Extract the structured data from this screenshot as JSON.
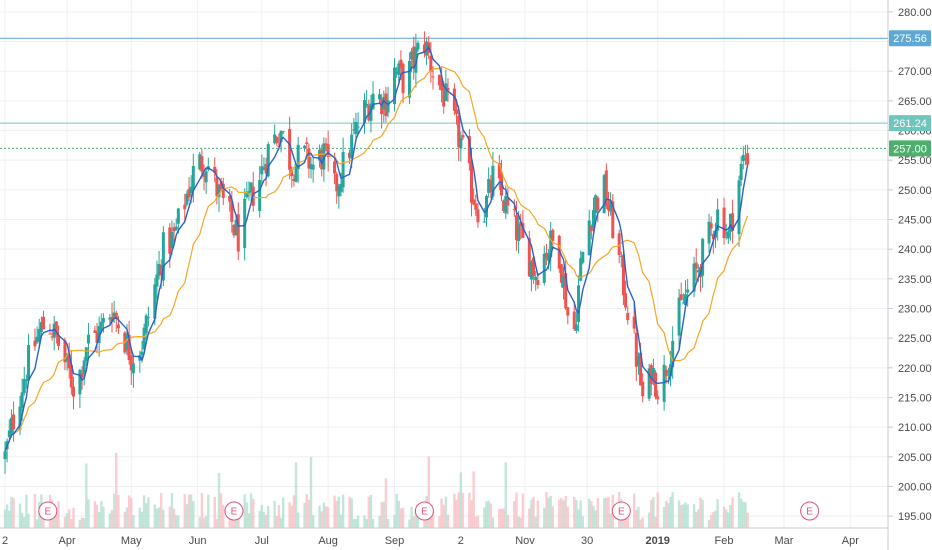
{
  "chart_data": {
    "type": "candlestick",
    "y_axis": {
      "range": [
        193,
        282
      ],
      "ticks": [
        "195.00",
        "200.00",
        "205.00",
        "210.00",
        "215.00",
        "220.00",
        "225.00",
        "230.00",
        "235.00",
        "240.00",
        "245.00",
        "250.00",
        "255.00",
        "260.00",
        "265.00",
        "270.00",
        "275.00",
        "280.00"
      ]
    },
    "x_axis": {
      "ticks": [
        {
          "label": "2",
          "day": 0
        },
        {
          "label": "Apr",
          "day": 29
        },
        {
          "label": "May",
          "day": 59
        },
        {
          "label": "Jun",
          "day": 90
        },
        {
          "label": "Jul",
          "day": 120
        },
        {
          "label": "Aug",
          "day": 151
        },
        {
          "label": "Sep",
          "day": 182
        },
        {
          "label": "2",
          "day": 213
        },
        {
          "label": "Nov",
          "day": 243
        },
        {
          "label": "30",
          "day": 272
        },
        {
          "label": "2019",
          "day": 305,
          "bold": true
        },
        {
          "label": "Feb",
          "day": 336
        },
        {
          "label": "Mar",
          "day": 364
        },
        {
          "label": "Apr",
          "day": 395
        }
      ]
    },
    "horizontal_lines": [
      {
        "value": 275.56,
        "label": "275.56",
        "color": "#5fa8d3"
      },
      {
        "value": 261.24,
        "label": "261.24",
        "color": "#6fc6bd"
      },
      {
        "value": 257.0,
        "label": "257.00",
        "color": "#4caf6e",
        "dotted": true
      }
    ],
    "earnings_markers": {
      "label": "E",
      "days": [
        20,
        107,
        196,
        288,
        376
      ]
    },
    "keypoints": [
      [
        0,
        205
      ],
      [
        5,
        213
      ],
      [
        10,
        220
      ],
      [
        16,
        226
      ],
      [
        20,
        228
      ],
      [
        25,
        224
      ],
      [
        29,
        220
      ],
      [
        33,
        216
      ],
      [
        38,
        224
      ],
      [
        44,
        226
      ],
      [
        50,
        230
      ],
      [
        55,
        226
      ],
      [
        59,
        222
      ],
      [
        64,
        224
      ],
      [
        69,
        232
      ],
      [
        74,
        240
      ],
      [
        79,
        242
      ],
      [
        84,
        248
      ],
      [
        89,
        254
      ],
      [
        94,
        255
      ],
      [
        99,
        250
      ],
      [
        104,
        246
      ],
      [
        109,
        242
      ],
      [
        114,
        248
      ],
      [
        119,
        252
      ],
      [
        124,
        258
      ],
      [
        129,
        260
      ],
      [
        134,
        254
      ],
      [
        139,
        256
      ],
      [
        144,
        254
      ],
      [
        149,
        256
      ],
      [
        154,
        250
      ],
      [
        160,
        256
      ],
      [
        166,
        262
      ],
      [
        172,
        266
      ],
      [
        178,
        265
      ],
      [
        182,
        270
      ],
      [
        187,
        268
      ],
      [
        191,
        272
      ],
      [
        196,
        275
      ],
      [
        200,
        270
      ],
      [
        205,
        266
      ],
      [
        209,
        262
      ],
      [
        213,
        258
      ],
      [
        218,
        250
      ],
      [
        223,
        245
      ],
      [
        228,
        252
      ],
      [
        233,
        248
      ],
      [
        238,
        244
      ],
      [
        243,
        240
      ],
      [
        248,
        236
      ],
      [
        253,
        240
      ],
      [
        258,
        242
      ],
      [
        262,
        232
      ],
      [
        265,
        223
      ],
      [
        269,
        237
      ],
      [
        272,
        244
      ],
      [
        276,
        248
      ],
      [
        280,
        250
      ],
      [
        284,
        244
      ],
      [
        288,
        236
      ],
      [
        292,
        228
      ],
      [
        296,
        220
      ],
      [
        299,
        212
      ],
      [
        302,
        220
      ],
      [
        306,
        216
      ],
      [
        310,
        222
      ],
      [
        314,
        228
      ],
      [
        318,
        232
      ],
      [
        323,
        236
      ],
      [
        327,
        240
      ],
      [
        331,
        244
      ],
      [
        334,
        247
      ],
      [
        338,
        242
      ],
      [
        342,
        250
      ],
      [
        345,
        255
      ],
      [
        347,
        256
      ]
    ],
    "ma_fast": {
      "name": "",
      "color": "#2962c9",
      "period": 5
    },
    "ma_slow": {
      "name": "",
      "color": "#f5a623",
      "period": 18
    },
    "colors": {
      "up": "#26a69a",
      "down": "#ef5350",
      "volume_up": "#a8dccb",
      "volume_down": "#f6b8bd"
    }
  }
}
